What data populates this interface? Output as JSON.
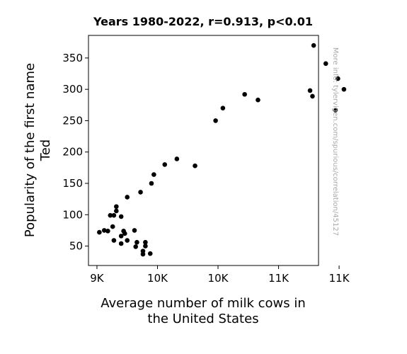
{
  "chart_data": {
    "type": "scatter",
    "title": "Years 1980-2022, r=0.913, p<0.01",
    "xlabel": [
      "Average number of milk cows in",
      "the United States"
    ],
    "ylabel": [
      "Popularity of the first name",
      "Ted"
    ],
    "watermark": "More info: tylervigen.com/spurious/correlation/45127",
    "xlim": [
      8930,
      10830
    ],
    "ylim": [
      19,
      386
    ],
    "xticks": [
      {
        "value": 9000,
        "label": "9K"
      },
      {
        "value": 9500,
        "label": "10K"
      },
      {
        "value": 10000,
        "label": "10K"
      },
      {
        "value": 10500,
        "label": "11K"
      },
      {
        "value": 11000,
        "label": "11K"
      }
    ],
    "yticks": [
      50,
      100,
      150,
      200,
      250,
      300,
      350
    ],
    "grid": false,
    "marker_color": "#000000",
    "points": [
      [
        9020,
        72
      ],
      [
        9060,
        75
      ],
      [
        9090,
        74
      ],
      [
        9110,
        99
      ],
      [
        9130,
        81
      ],
      [
        9140,
        59
      ],
      [
        9140,
        99
      ],
      [
        9160,
        106
      ],
      [
        9160,
        113
      ],
      [
        9200,
        97
      ],
      [
        9200,
        66
      ],
      [
        9200,
        54
      ],
      [
        9220,
        74
      ],
      [
        9230,
        70
      ],
      [
        9250,
        59
      ],
      [
        9250,
        128
      ],
      [
        9310,
        75
      ],
      [
        9320,
        49
      ],
      [
        9330,
        56
      ],
      [
        9360,
        136
      ],
      [
        9380,
        37
      ],
      [
        9380,
        42
      ],
      [
        9400,
        50
      ],
      [
        9400,
        56
      ],
      [
        9440,
        38
      ],
      [
        9450,
        150
      ],
      [
        9470,
        164
      ],
      [
        9560,
        180
      ],
      [
        9660,
        189
      ],
      [
        9810,
        178
      ],
      [
        9980,
        250
      ],
      [
        10040,
        270
      ],
      [
        10220,
        292
      ],
      [
        10330,
        283
      ],
      [
        10760,
        298
      ],
      [
        10780,
        289
      ],
      [
        10790,
        370
      ],
      [
        10890,
        341
      ],
      [
        10970,
        267
      ],
      [
        10990,
        317
      ],
      [
        11040,
        300
      ]
    ]
  }
}
